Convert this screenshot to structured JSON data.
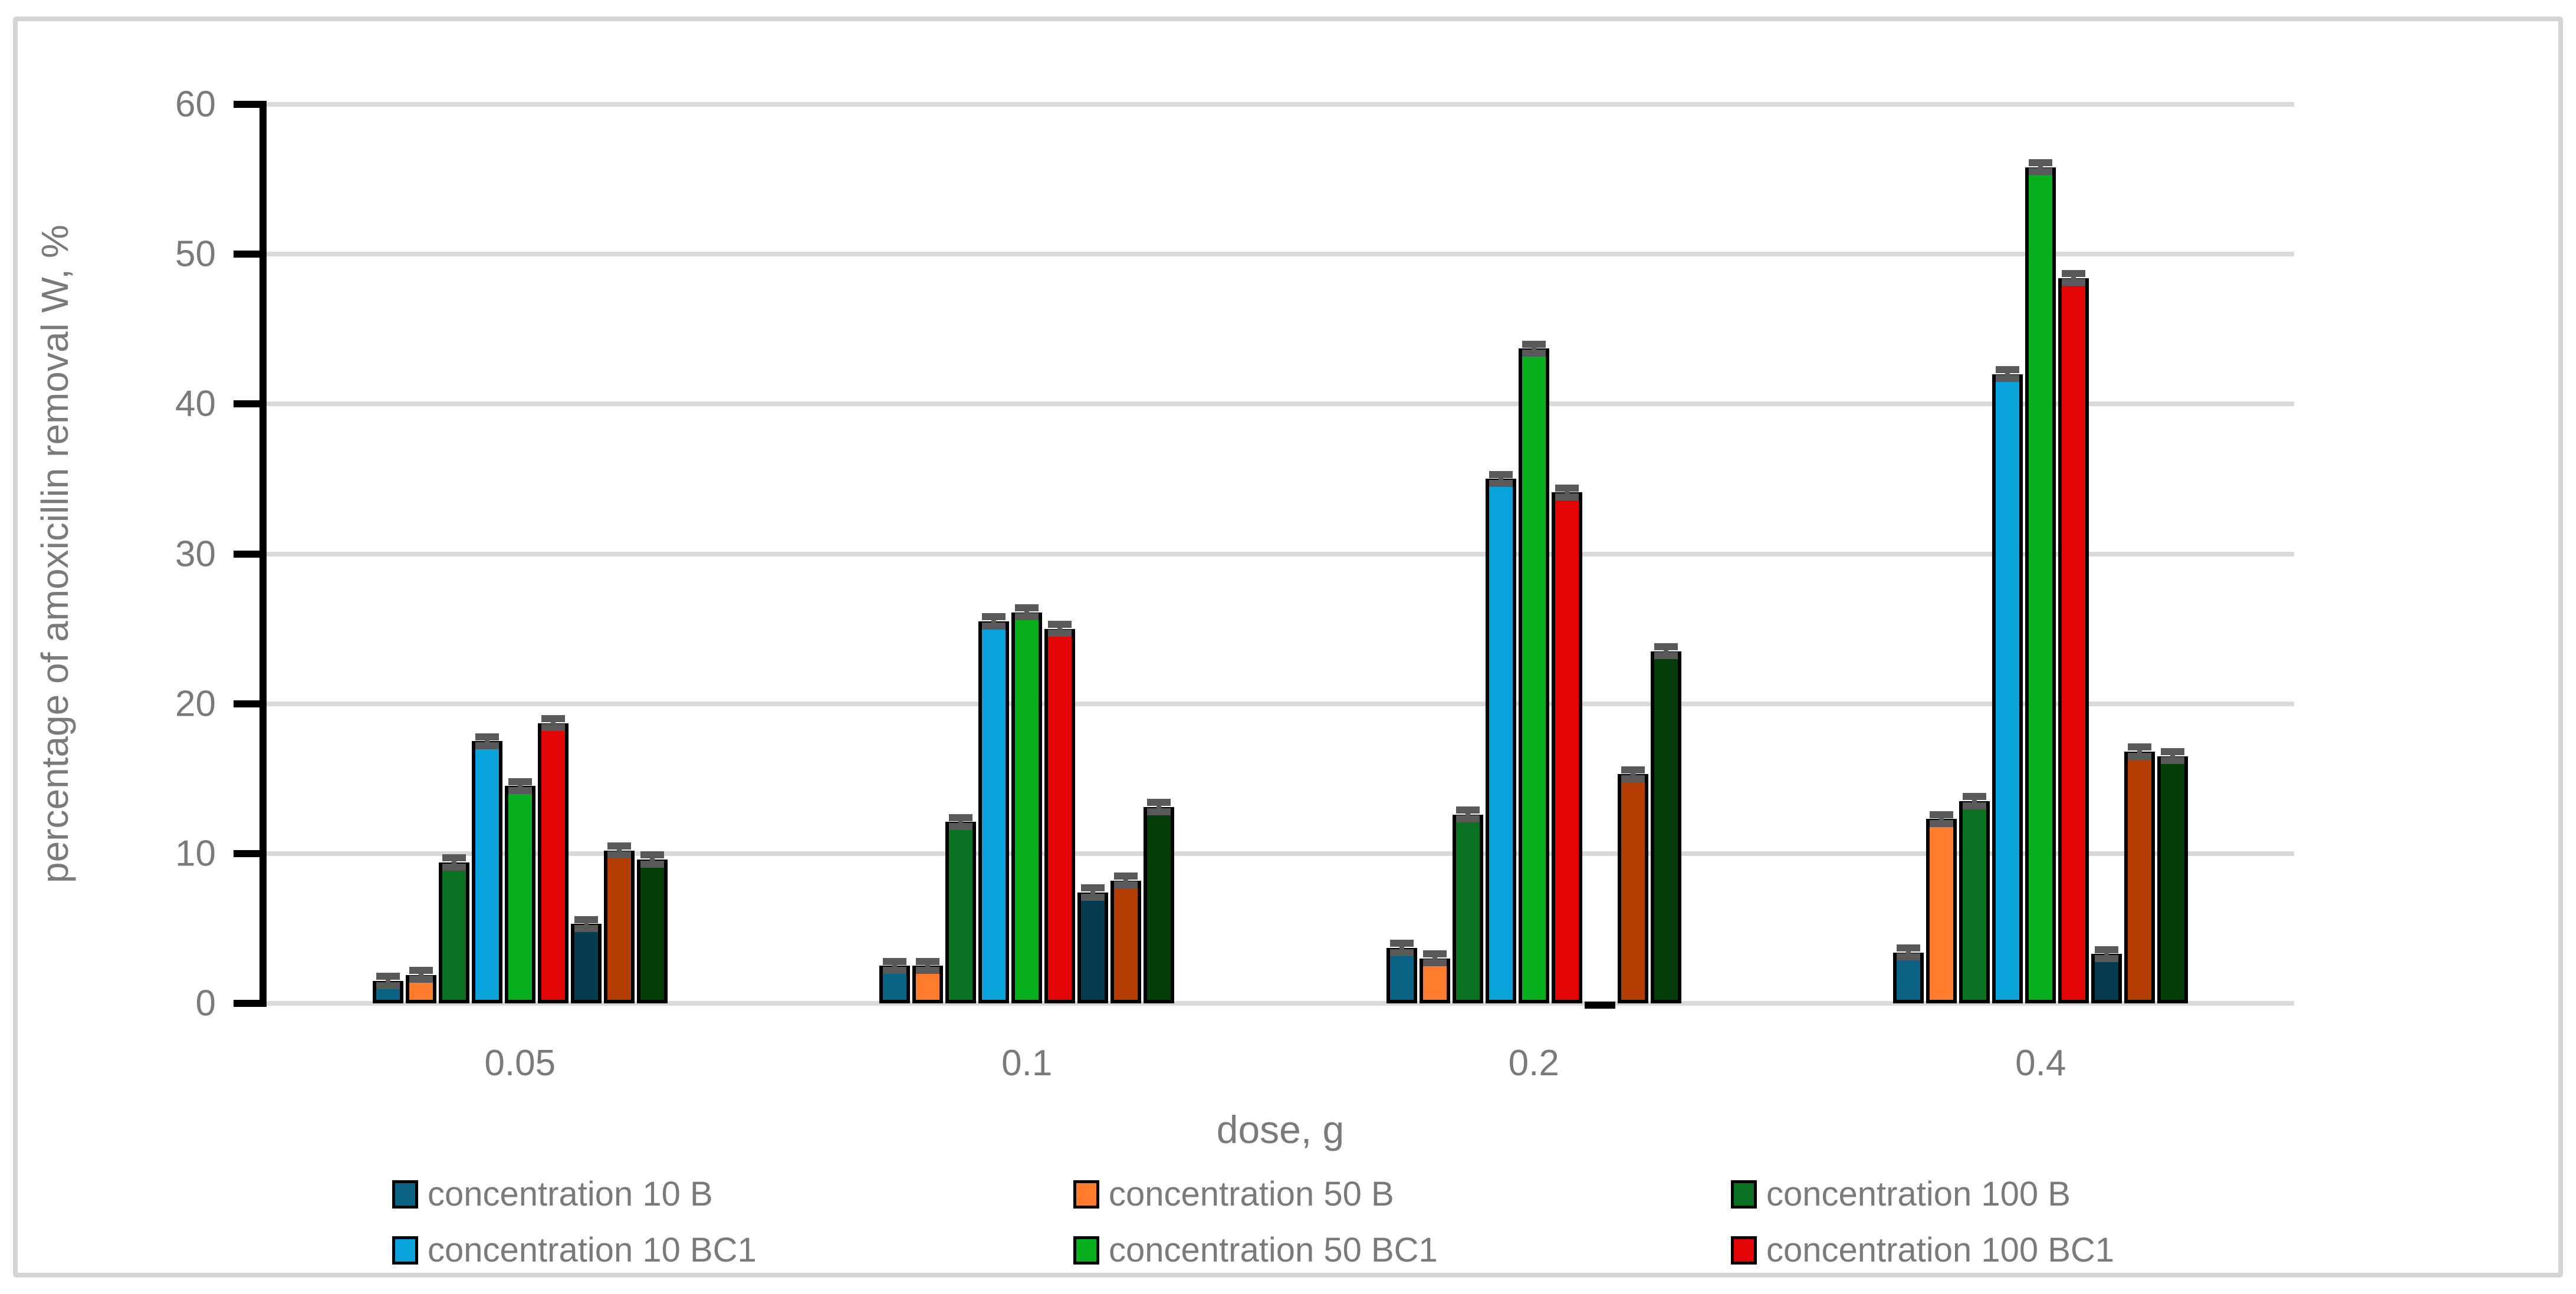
{
  "chart_data": {
    "type": "bar",
    "title": "",
    "xlabel": "dose, g",
    "ylabel": "percentage of amoxicillin removal W, %",
    "categories": [
      "0.05",
      "0.1",
      "0.2",
      "0.4"
    ],
    "ylim": [
      0,
      60
    ],
    "y_tick_step": 10,
    "y_tick_labels": [
      "0",
      "10",
      "20",
      "30",
      "40",
      "50",
      "60"
    ],
    "grid": "horizontal",
    "error_bar": 0.3,
    "series": [
      {
        "name": "concentration 10 B",
        "color": "#0b6384",
        "in_legend": true,
        "values": [
          1.5,
          2.5,
          3.7,
          3.4
        ]
      },
      {
        "name": "concentration 50 B",
        "color": "#ff7b2e",
        "in_legend": true,
        "values": [
          1.9,
          2.5,
          3.0,
          12.3
        ]
      },
      {
        "name": "concentration 100 B",
        "color": "#087122",
        "in_legend": true,
        "values": [
          9.4,
          12.1,
          12.6,
          13.5
        ]
      },
      {
        "name": "concentration 10 BC1",
        "color": "#09a2db",
        "in_legend": true,
        "values": [
          17.5,
          25.5,
          35.0,
          42.0
        ]
      },
      {
        "name": "concentration 50 BC1",
        "color": "#07ae1d",
        "in_legend": true,
        "values": [
          14.5,
          26.1,
          43.7,
          55.8
        ]
      },
      {
        "name": "concentration 100 BC1",
        "color": "#e30505",
        "in_legend": true,
        "values": [
          18.7,
          25.0,
          34.1,
          48.4
        ]
      },
      {
        "name": "",
        "color": "#073b52",
        "in_legend": false,
        "values": [
          5.3,
          7.4,
          0.1,
          3.3
        ]
      },
      {
        "name": "",
        "color": "#b33d02",
        "in_legend": false,
        "values": [
          10.2,
          8.2,
          15.3,
          16.8
        ]
      },
      {
        "name": "",
        "color": "#043d0a",
        "in_legend": false,
        "values": [
          9.6,
          13.1,
          23.5,
          16.5
        ]
      }
    ],
    "legend": {
      "position": "bottom",
      "columns": [
        [
          "concentration 10 B",
          "concentration 10 BC1"
        ],
        [
          "concentration 50 B",
          "concentration 50 BC1"
        ],
        [
          "concentration 100 B",
          "concentration 100 BC1"
        ]
      ]
    }
  },
  "colors": {
    "gridline": "#d9d9d9",
    "axis_line": "#000000",
    "bar_outline": "#000000",
    "error_bar": "#595959",
    "text": "#7a7a7a",
    "frame_border": "#d4d4d4",
    "background": "#ffffff"
  }
}
